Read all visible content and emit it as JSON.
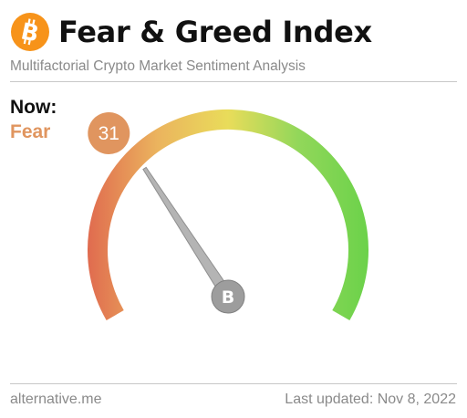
{
  "header": {
    "logo_icon": "bitcoin-icon",
    "title": "Fear & Greed Index",
    "subtitle": "Multifactorial Crypto Market Sentiment Analysis"
  },
  "status": {
    "now_label": "Now:",
    "classification": "Fear",
    "classification_color": "#e0955f"
  },
  "gauge": {
    "value": 31,
    "value_text": "31",
    "min": 0,
    "max": 100,
    "badge_color": "#e0955f",
    "colors": [
      "#e06b4f",
      "#ebb45e",
      "#e9dc5a",
      "#92d75a",
      "#6bd24a"
    ],
    "center_icon": "bitcoin-icon"
  },
  "footer": {
    "source": "alternative.me",
    "last_updated": "Last updated: Nov 8, 2022"
  }
}
